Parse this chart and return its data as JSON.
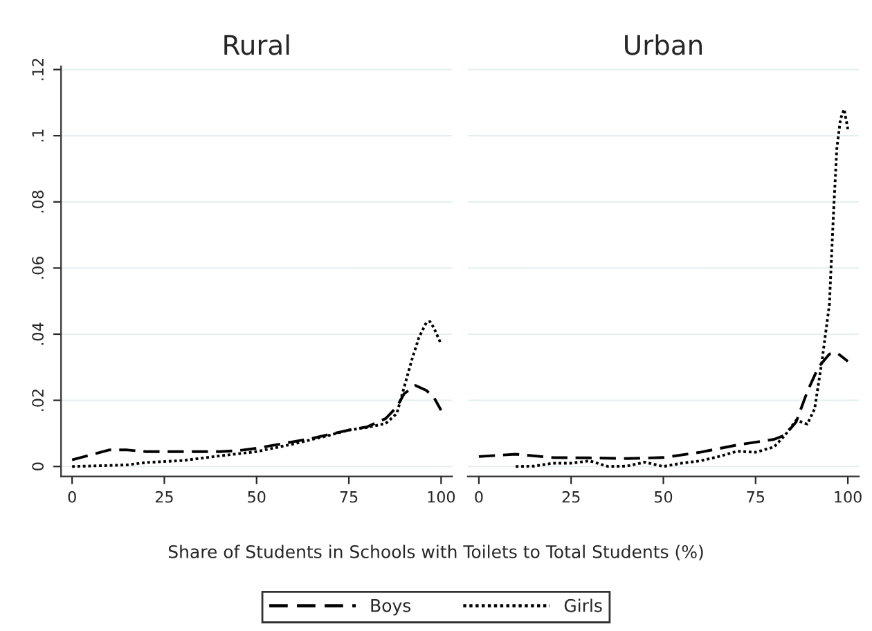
{
  "chart_data": [
    {
      "type": "line",
      "title": "Rural",
      "xlabel": "Share of Students in Schools with Toilets to Total Students (%)",
      "xlim": [
        -3,
        103
      ],
      "xticks": [
        0,
        25,
        50,
        75,
        100
      ],
      "ylim": [
        -0.003,
        0.121
      ],
      "yticks": [
        0,
        {
          "value": 0.02,
          "label": ".02"
        },
        {
          "value": 0.04,
          "label": ".04"
        },
        {
          "value": 0.06,
          "label": ".06"
        },
        {
          "value": 0.08,
          "label": ".08"
        },
        {
          "value": 0.1,
          "label": ".1"
        },
        {
          "value": 0.12,
          "label": ".12"
        }
      ],
      "grid": "y",
      "legend": "bottom",
      "series": [
        {
          "name": "Boys",
          "color": "#000000",
          "line_style": "dashed",
          "x": [
            0,
            5,
            10,
            15,
            20,
            30,
            40,
            45,
            50,
            55,
            60,
            65,
            70,
            75,
            80,
            85,
            88,
            90,
            93,
            96,
            98,
            100
          ],
          "values": [
            0.002,
            0.0035,
            0.005,
            0.005,
            0.0045,
            0.0045,
            0.0045,
            0.0048,
            0.0055,
            0.0065,
            0.0075,
            0.0085,
            0.0098,
            0.011,
            0.012,
            0.0145,
            0.018,
            0.022,
            0.0245,
            0.023,
            0.021,
            0.017
          ]
        },
        {
          "name": "Girls",
          "color": "#000000",
          "line_style": "dotted",
          "x": [
            0,
            10,
            15,
            20,
            30,
            40,
            50,
            60,
            70,
            75,
            80,
            85,
            88,
            90,
            92,
            94,
            96,
            97,
            98,
            100
          ],
          "values": [
            0,
            0.0003,
            0.0005,
            0.0012,
            0.0018,
            0.0032,
            0.0045,
            0.0068,
            0.0095,
            0.011,
            0.0118,
            0.013,
            0.016,
            0.024,
            0.032,
            0.039,
            0.0435,
            0.0438,
            0.042,
            0.037
          ]
        }
      ]
    },
    {
      "type": "line",
      "title": "Urban",
      "xlim": [
        -3,
        103
      ],
      "xticks": [
        0,
        25,
        50,
        75,
        100
      ],
      "ylim": [
        -0.003,
        0.121
      ],
      "yticks": [
        {
          "value": 0,
          "label": null
        },
        {
          "value": 0.02,
          "label": null
        },
        {
          "value": 0.04,
          "label": null
        },
        {
          "value": 0.06,
          "label": null
        },
        {
          "value": 0.08,
          "label": null
        },
        {
          "value": 0.1,
          "label": null
        },
        {
          "value": 0.12,
          "label": null
        }
      ],
      "grid": "y",
      "tick_labels": "x",
      "series": [
        {
          "color": "#000000",
          "line_style": "dashed",
          "x": [
            0,
            10,
            20,
            30,
            40,
            50,
            60,
            70,
            80,
            83,
            86,
            89,
            92,
            95,
            97,
            100
          ],
          "values": [
            0.003,
            0.0037,
            0.0027,
            0.0026,
            0.0024,
            0.0027,
            0.0043,
            0.0065,
            0.0082,
            0.0095,
            0.0135,
            0.0226,
            0.03,
            0.034,
            0.0344,
            0.0318
          ]
        },
        {
          "color": "#000000",
          "line_style": "dotted",
          "x": [
            10,
            15,
            20,
            25,
            30,
            35,
            40,
            45,
            50,
            55,
            60,
            65,
            70,
            75,
            80,
            83,
            86,
            89,
            91,
            93,
            95,
            96,
            97,
            98,
            99,
            100
          ],
          "values": [
            0,
            0.0001,
            0.001,
            0.001,
            0.0017,
            0,
            0.0001,
            0.0013,
            0,
            0.001,
            0.0017,
            0.003,
            0.0046,
            0.0043,
            0.0059,
            0.0095,
            0.014,
            0.0128,
            0.0174,
            0.032,
            0.049,
            0.074,
            0.096,
            0.105,
            0.108,
            0.102
          ]
        }
      ]
    }
  ]
}
